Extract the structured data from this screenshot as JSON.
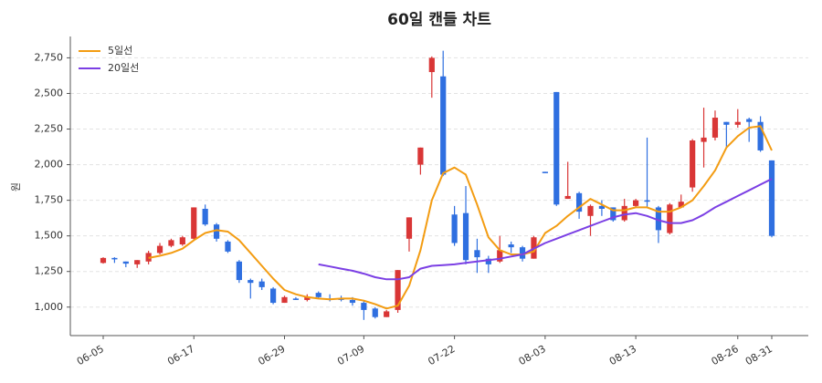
{
  "chart_data": {
    "type": "candlestick",
    "title": "60일 캔들 차트",
    "ylabel": "원",
    "categories": [
      "06-05",
      null,
      null,
      null,
      null,
      null,
      null,
      null,
      "06-17",
      null,
      null,
      null,
      null,
      null,
      null,
      null,
      "06-29",
      null,
      null,
      null,
      null,
      null,
      null,
      "07-09",
      null,
      null,
      null,
      null,
      null,
      null,
      null,
      "07-22",
      null,
      null,
      null,
      null,
      null,
      null,
      null,
      "08-03",
      null,
      null,
      null,
      null,
      null,
      null,
      null,
      "08-13",
      null,
      null,
      null,
      null,
      null,
      null,
      null,
      null,
      "08-26",
      null,
      null,
      "08-31"
    ],
    "open": [
      1310,
      1345,
      1320,
      1300,
      1320,
      1380,
      1430,
      1440,
      1480,
      1690,
      1580,
      1460,
      1320,
      1190,
      1180,
      1130,
      1030,
      1060,
      1050,
      1100,
      1060,
      1060,
      1050,
      1030,
      990,
      930,
      980,
      1480,
      2000,
      2650,
      2620,
      1650,
      1660,
      1400,
      1340,
      1320,
      1440,
      1420,
      1340,
      1950,
      2510,
      1760,
      1800,
      1640,
      1710,
      1700,
      1610,
      1710,
      1750,
      1700,
      1520,
      1700,
      1840,
      2160,
      2190,
      2300,
      2280,
      2320,
      2300,
      2030
    ],
    "high": [
      1350,
      1350,
      1320,
      1330,
      1395,
      1450,
      1480,
      1500,
      1700,
      1720,
      1590,
      1470,
      1330,
      1200,
      1200,
      1140,
      1080,
      1070,
      1090,
      1110,
      1090,
      1080,
      1070,
      1040,
      1000,
      980,
      1260,
      1630,
      2120,
      2760,
      2800,
      1710,
      1850,
      1480,
      1360,
      1500,
      1460,
      1430,
      1500,
      1950,
      2510,
      2020,
      1810,
      1720,
      1750,
      1700,
      1760,
      1760,
      2190,
      1710,
      1730,
      1790,
      2180,
      2400,
      2380,
      2300,
      2390,
      2330,
      2340,
      2030
    ],
    "low": [
      1305,
      1310,
      1280,
      1275,
      1300,
      1370,
      1420,
      1430,
      1470,
      1570,
      1460,
      1380,
      1170,
      1060,
      1120,
      1020,
      1030,
      1050,
      1040,
      1060,
      1040,
      1040,
      1010,
      910,
      920,
      930,
      960,
      1390,
      1930,
      2470,
      1920,
      1430,
      1300,
      1240,
      1240,
      1310,
      1380,
      1320,
      1340,
      1940,
      1710,
      1760,
      1620,
      1500,
      1640,
      1600,
      1600,
      1700,
      1700,
      1450,
      1510,
      1700,
      1810,
      1980,
      2170,
      2120,
      2260,
      2160,
      2090,
      1490
    ],
    "close": [
      1345,
      1335,
      1305,
      1330,
      1380,
      1430,
      1470,
      1490,
      1700,
      1580,
      1480,
      1390,
      1190,
      1170,
      1140,
      1030,
      1070,
      1050,
      1070,
      1070,
      1050,
      1050,
      1030,
      980,
      930,
      970,
      1260,
      1630,
      2120,
      2750,
      1930,
      1450,
      1330,
      1350,
      1300,
      1400,
      1420,
      1340,
      1490,
      1940,
      1720,
      1780,
      1670,
      1710,
      1690,
      1610,
      1710,
      1750,
      1740,
      1540,
      1720,
      1740,
      2170,
      2190,
      2330,
      2280,
      2300,
      2300,
      2100,
      1500
    ],
    "up_color": "#d93636",
    "down_color": "#2f6fe0",
    "series": [
      {
        "name": "5일선",
        "color": "#f39c12",
        "values": [
          null,
          null,
          null,
          null,
          1345,
          1360,
          1380,
          1410,
          1470,
          1520,
          1540,
          1530,
          1470,
          1380,
          1290,
          1200,
          1120,
          1090,
          1070,
          1060,
          1055,
          1060,
          1060,
          1045,
          1020,
          990,
          1010,
          1150,
          1400,
          1750,
          1940,
          1980,
          1930,
          1720,
          1490,
          1400,
          1370,
          1370,
          1390,
          1520,
          1570,
          1640,
          1700,
          1760,
          1720,
          1680,
          1680,
          1700,
          1700,
          1670,
          1670,
          1700,
          1750,
          1850,
          1960,
          2120,
          2200,
          2260,
          2270,
          2100
        ]
      },
      {
        "name": "20일선",
        "color": "#7b3fe4",
        "values": [
          null,
          null,
          null,
          null,
          null,
          null,
          null,
          null,
          null,
          null,
          null,
          null,
          null,
          null,
          null,
          null,
          null,
          null,
          null,
          1300,
          1285,
          1270,
          1255,
          1235,
          1210,
          1195,
          1195,
          1210,
          1270,
          1290,
          1295,
          1300,
          1310,
          1320,
          1330,
          1340,
          1355,
          1370,
          1410,
          1450,
          1480,
          1510,
          1540,
          1570,
          1600,
          1630,
          1650,
          1660,
          1640,
          1610,
          1590,
          1590,
          1610,
          1650,
          1700,
          1740,
          1780,
          1820,
          1860,
          1900
        ]
      }
    ],
    "ylim": [
      800,
      2900
    ],
    "yticks": [
      {
        "value": 1000,
        "label": "1,000"
      },
      {
        "value": 1250,
        "label": "1,250"
      },
      {
        "value": 1500,
        "label": "1,500"
      },
      {
        "value": 1750,
        "label": "1,750"
      },
      {
        "value": 2000,
        "label": "2,000"
      },
      {
        "value": 2250,
        "label": "2,250"
      },
      {
        "value": 2500,
        "label": "2,500"
      },
      {
        "value": 2750,
        "label": "2,750"
      }
    ],
    "grid": true,
    "legend": "upper left"
  }
}
